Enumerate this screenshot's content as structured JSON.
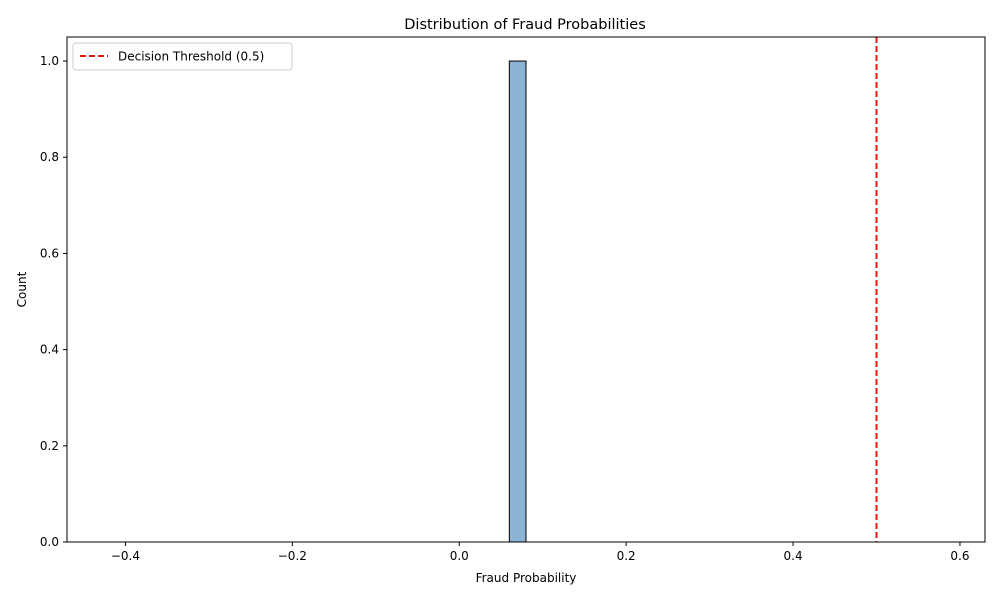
{
  "chart_data": {
    "type": "bar",
    "title": "Distribution of Fraud Probabilities",
    "xlabel": "Fraud Probability",
    "ylabel": "Count",
    "xlim": [
      -0.47,
      0.63
    ],
    "ylim": [
      0,
      1.05
    ],
    "x_ticks": [
      -0.4,
      -0.2,
      0.0,
      0.2,
      0.4,
      0.6
    ],
    "x_tick_labels": [
      "−0.4",
      "−0.2",
      "0.0",
      "0.2",
      "0.4",
      "0.6"
    ],
    "y_ticks": [
      0.0,
      0.2,
      0.4,
      0.6,
      0.8,
      1.0
    ],
    "y_tick_labels": [
      "0.0",
      "0.2",
      "0.4",
      "0.6",
      "0.8",
      "1.0"
    ],
    "histogram": {
      "bin_range": [
        -0.42,
        0.58
      ],
      "bin_count": 50,
      "bars": [
        {
          "x_start": 0.06,
          "x_end": 0.08,
          "count": 1
        }
      ],
      "bar_color": "#8db4d6",
      "edge_color": "#000000"
    },
    "threshold": {
      "x": 0.5,
      "label": "Decision Threshold (0.5)",
      "color": "#e8180f",
      "style": "dashed"
    },
    "legend_position": "upper-left",
    "grid": false
  }
}
